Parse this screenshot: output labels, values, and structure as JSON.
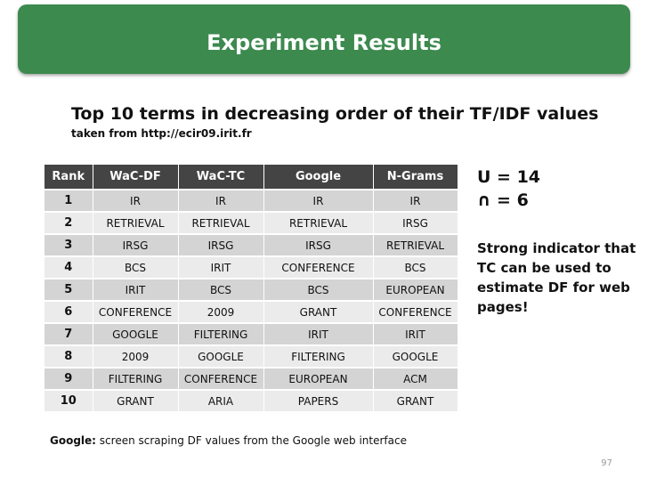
{
  "slide": {
    "title": "Experiment Results",
    "subtitle": "Top 10 terms in decreasing order of their TF/IDF values",
    "source": "taken from http://ecir09.irit.fr",
    "footnote_label": "Google:",
    "footnote_text": " screen scraping DF values from the Google web interface",
    "page_number": "97",
    "header_color": "#3d8a4f"
  },
  "table": {
    "headers": [
      "Rank",
      "WaC-DF",
      "WaC-TC",
      "Google",
      "N-Grams"
    ],
    "rows": [
      [
        "1",
        "IR",
        "IR",
        "IR",
        "IR"
      ],
      [
        "2",
        "RETRIEVAL",
        "RETRIEVAL",
        "RETRIEVAL",
        "IRSG"
      ],
      [
        "3",
        "IRSG",
        "IRSG",
        "IRSG",
        "RETRIEVAL"
      ],
      [
        "4",
        "BCS",
        "IRIT",
        "CONFERENCE",
        "BCS"
      ],
      [
        "5",
        "IRIT",
        "BCS",
        "BCS",
        "EUROPEAN"
      ],
      [
        "6",
        "CONFERENCE",
        "2009",
        "GRANT",
        "CONFERENCE"
      ],
      [
        "7",
        "GOOGLE",
        "FILTERING",
        "IRIT",
        "IRIT"
      ],
      [
        "8",
        "2009",
        "GOOGLE",
        "FILTERING",
        "GOOGLE"
      ],
      [
        "9",
        "FILTERING",
        "CONFERENCE",
        "EUROPEAN",
        "ACM"
      ],
      [
        "10",
        "GRANT",
        "ARIA",
        "PAPERS",
        "GRANT"
      ]
    ]
  },
  "side": {
    "union": "U = 14",
    "intersection": "∩ = 6",
    "note": "Strong indicator that TC can be used to estimate DF for web pages!"
  }
}
